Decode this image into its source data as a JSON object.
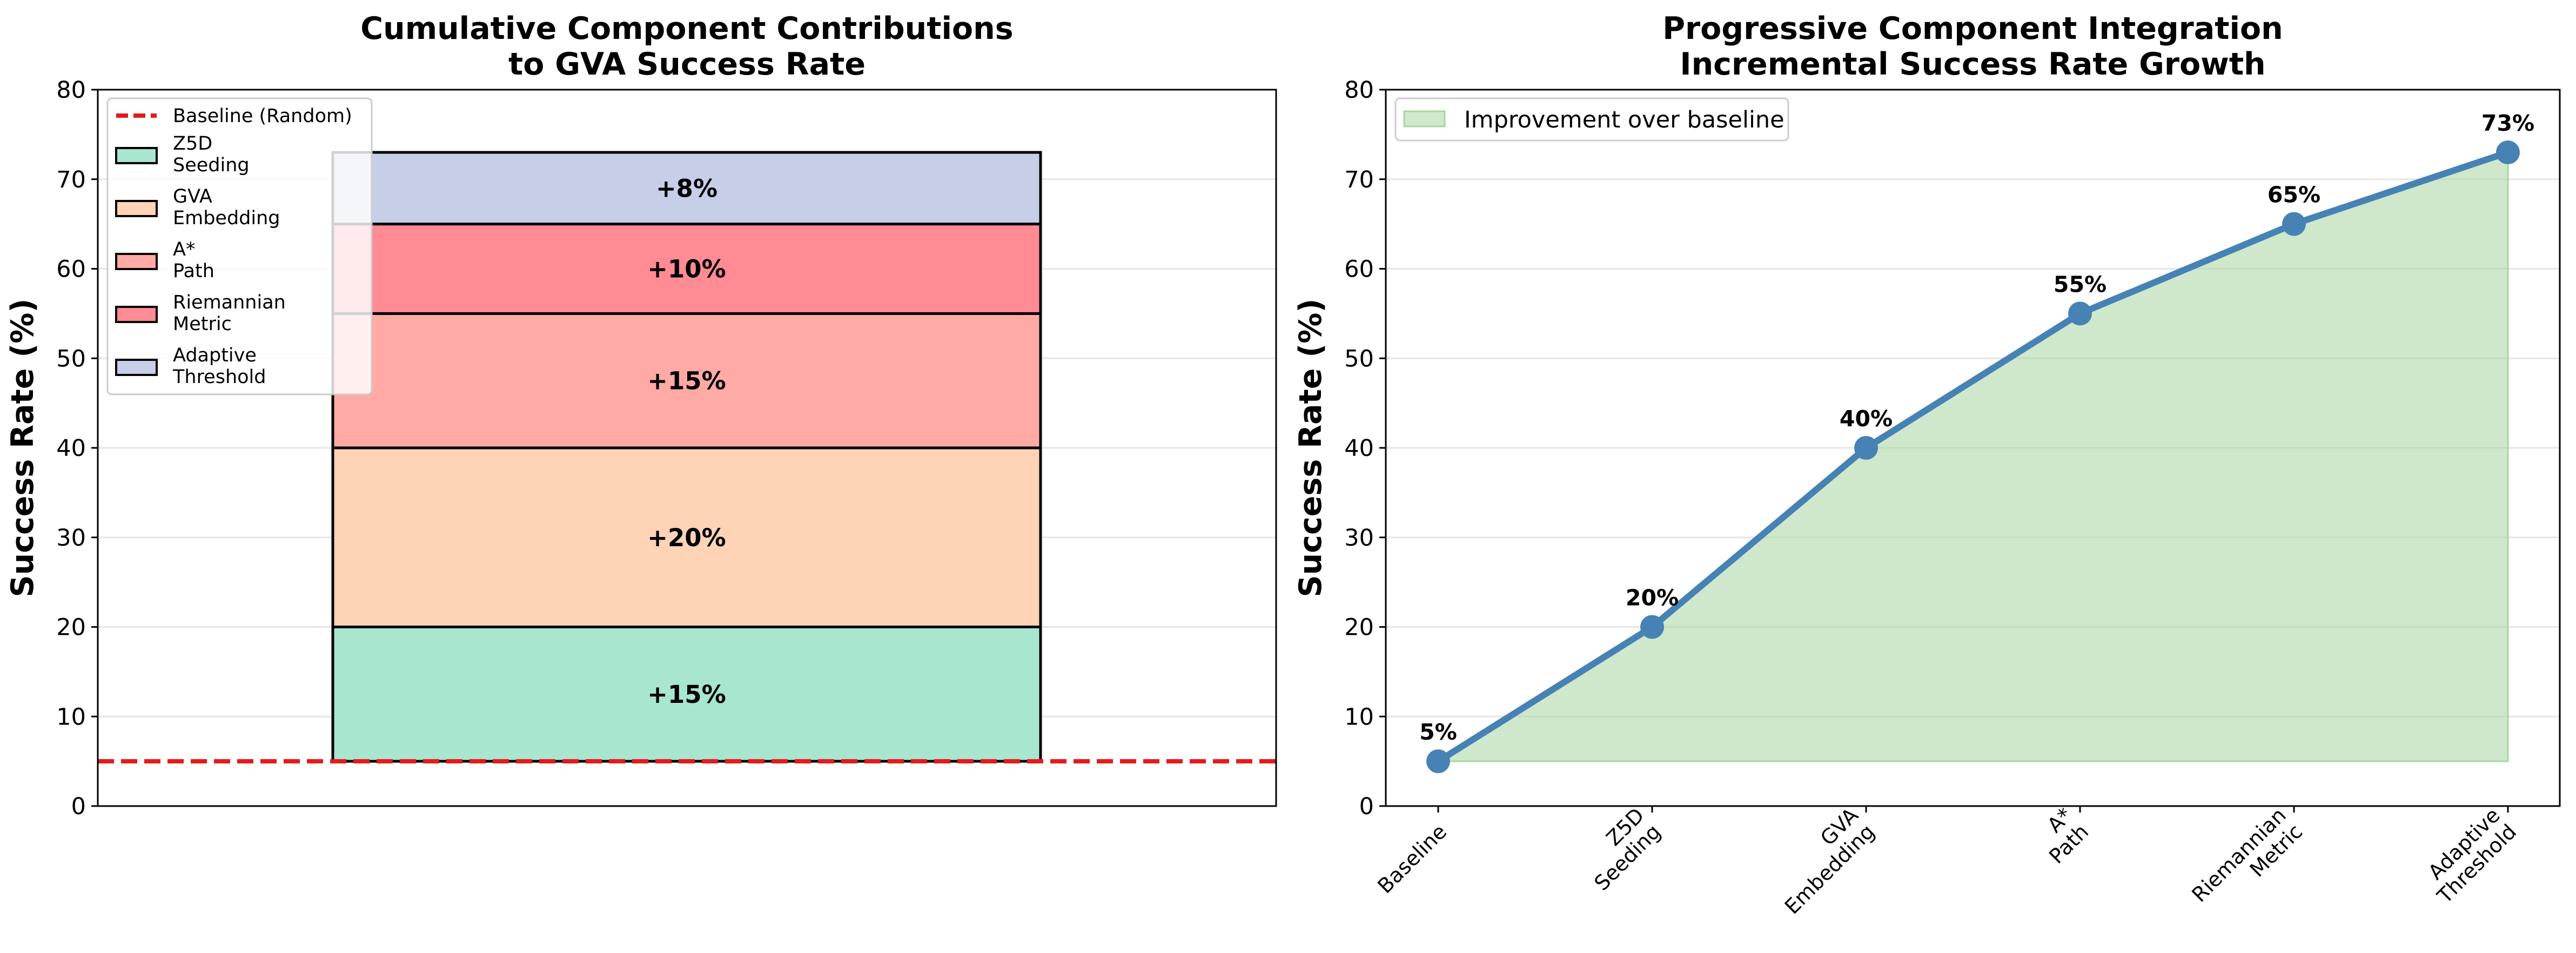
{
  "chart_data": [
    {
      "type": "bar",
      "title": [
        "Cumulative Component Contributions",
        "to GVA Success Rate"
      ],
      "ylabel": "Success Rate (%)",
      "ylim": [
        0,
        80
      ],
      "yticks": [
        "0",
        "10",
        "20",
        "30",
        "40",
        "50",
        "60",
        "70",
        "80"
      ],
      "stacked": true,
      "base": 5,
      "baseline": {
        "name": "Baseline (Random)",
        "value": 5,
        "color": "#e41a1c"
      },
      "series": [
        {
          "name": "Z5D\nSeeding",
          "value": 15,
          "label": "+15%",
          "color": "#a8e6cf"
        },
        {
          "name": "GVA\nEmbedding",
          "value": 20,
          "label": "+20%",
          "color": "#ffd3b6"
        },
        {
          "name": "A*\nPath",
          "value": 15,
          "label": "+15%",
          "color": "#ffaaa5"
        },
        {
          "name": "Riemannian\nMetric",
          "value": 10,
          "label": "+10%",
          "color": "#ff8b94"
        },
        {
          "name": "Adaptive\nThreshold",
          "value": 8,
          "label": "+8%",
          "color": "#c7cee8"
        }
      ],
      "legend_position": "top-left",
      "grid": true
    },
    {
      "type": "line",
      "title": [
        "Progressive Component Integration",
        "Incremental Success Rate Growth"
      ],
      "ylabel": "Success Rate (%)",
      "ylim": [
        0,
        80
      ],
      "yticks": [
        "0",
        "10",
        "20",
        "30",
        "40",
        "50",
        "60",
        "70",
        "80"
      ],
      "categories": [
        "Baseline",
        "Z5D\nSeeding",
        "GVA\nEmbedding",
        "A*\nPath",
        "Riemannian\nMetric",
        "Adaptive\nThreshold"
      ],
      "values": [
        5,
        20,
        40,
        55,
        65,
        73
      ],
      "labels": [
        "5%",
        "20%",
        "40%",
        "55%",
        "65%",
        "73%"
      ],
      "line_color": "#4682b4",
      "fill": {
        "name": "Improvement over baseline",
        "base": 5,
        "color": "#a8d5a2"
      },
      "legend_position": "top-left",
      "grid": true
    }
  ]
}
